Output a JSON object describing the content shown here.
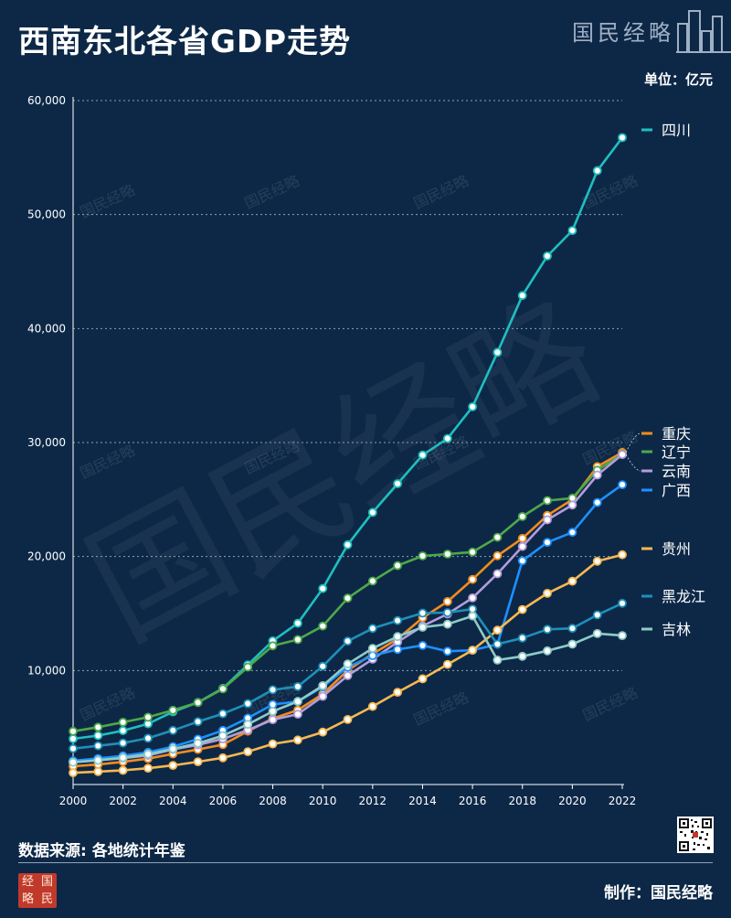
{
  "header": {
    "title": "西南东北各省GDP走势",
    "brand": "国民经略",
    "unit": "单位：亿元"
  },
  "footer": {
    "source": "数据来源: 各地统计年鉴",
    "maker": "制作：国民经略",
    "seal_chars": [
      "经",
      "国",
      "略",
      "民"
    ]
  },
  "watermark": {
    "small": "国民经略",
    "large": "国民经略"
  },
  "chart_data": {
    "type": "line",
    "title": "西南东北各省GDP走势",
    "ylabel": "单位：亿元",
    "xlim": [
      2000,
      2022
    ],
    "ylim": [
      0,
      60000
    ],
    "xticks": [
      2000,
      2002,
      2004,
      2006,
      2008,
      2010,
      2012,
      2014,
      2016,
      2018,
      2020,
      2022
    ],
    "xtick_labels": [
      "2000",
      "2002",
      "2004",
      "2006",
      "2008",
      "2010",
      "2012",
      "2014",
      "2016",
      "2018",
      "2020",
      "2022"
    ],
    "yticks": [
      10000,
      20000,
      30000,
      40000,
      50000,
      60000
    ],
    "ytick_labels": [
      "10,000",
      "20,000",
      "30,000",
      "40,000",
      "50,000",
      "60,000"
    ],
    "grid": "horizontal dotted",
    "x": [
      2000,
      2001,
      2002,
      2003,
      2004,
      2005,
      2006,
      2007,
      2008,
      2009,
      2010,
      2011,
      2012,
      2013,
      2014,
      2015,
      2016,
      2017,
      2018,
      2019,
      2020,
      2021,
      2022
    ],
    "series": [
      {
        "name": "四川",
        "color": "#1fbfbf",
        "values": [
          4010,
          4290,
          4725,
          5330,
          6380,
          7200,
          8440,
          10500,
          12600,
          14150,
          17190,
          21030,
          23870,
          26390,
          28900,
          30350,
          33140,
          37910,
          42900,
          46360,
          48600,
          53850,
          56750
        ]
      },
      {
        "name": "重庆",
        "color": "#f28c1f",
        "values": [
          1600,
          1760,
          1990,
          2270,
          2690,
          3070,
          3500,
          4680,
          5790,
          6530,
          7930,
          10010,
          11460,
          12780,
          14620,
          16050,
          17990,
          20070,
          21590,
          23610,
          25000,
          27890,
          29130
        ]
      },
      {
        "name": "辽宁",
        "color": "#4ea84a",
        "values": [
          4670,
          5030,
          5460,
          5900,
          6510,
          7190,
          8390,
          10300,
          12170,
          12710,
          13900,
          16350,
          17850,
          19200,
          20050,
          20210,
          20390,
          21690,
          23510,
          24910,
          25120,
          27580,
          28980
        ]
      },
      {
        "name": "云南",
        "color": "#b39ddb",
        "values": [
          2010,
          2140,
          2310,
          2550,
          3080,
          3470,
          4000,
          4770,
          5690,
          6170,
          7730,
          9550,
          11000,
          12500,
          13900,
          14960,
          16370,
          18490,
          20880,
          23220,
          24520,
          27150,
          28950
        ]
      },
      {
        "name": "广西",
        "color": "#1e90ff",
        "values": [
          2080,
          2280,
          2520,
          2820,
          3320,
          3980,
          4750,
          5820,
          7020,
          7280,
          8560,
          10300,
          11300,
          11850,
          12200,
          11690,
          11780,
          12300,
          19630,
          21240,
          22120,
          24740,
          26300
        ]
      },
      {
        "name": "贵州",
        "color": "#f7b850",
        "values": [
          1030,
          1130,
          1240,
          1430,
          1680,
          2000,
          2340,
          2880,
          3560,
          3910,
          4600,
          5700,
          6850,
          8090,
          9270,
          10540,
          11780,
          13540,
          15350,
          16770,
          17830,
          19590,
          20160
        ]
      },
      {
        "name": "黑龙江",
        "color": "#1e8fb8",
        "values": [
          3150,
          3390,
          3640,
          4060,
          4750,
          5510,
          6210,
          7100,
          8310,
          8590,
          10370,
          12580,
          13690,
          14380,
          15040,
          15080,
          15390,
          12310,
          12850,
          13610,
          13700,
          14880,
          15900
        ]
      },
      {
        "name": "吉林",
        "color": "#8ecbc8",
        "values": [
          1950,
          2120,
          2350,
          2660,
          3120,
          3620,
          4280,
          5280,
          6420,
          7280,
          8670,
          10570,
          11940,
          12980,
          13800,
          14060,
          14780,
          10920,
          11250,
          11730,
          12310,
          13240,
          13070
        ]
      }
    ]
  }
}
